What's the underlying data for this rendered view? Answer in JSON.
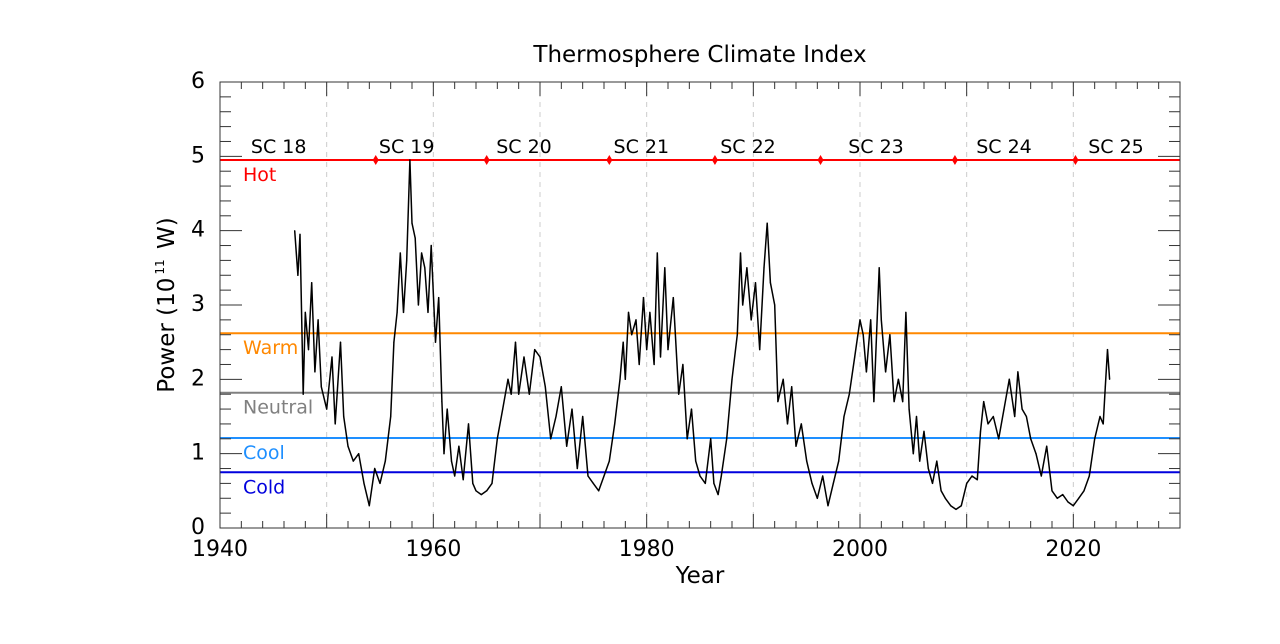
{
  "chart_data": {
    "type": "line",
    "title": "Thermosphere Climate Index",
    "xlabel": "Year",
    "ylabel_prefix": "Power (10",
    "ylabel_exp": "11",
    "ylabel_suffix": " W)",
    "xlim": [
      1940,
      2030
    ],
    "ylim": [
      0,
      6
    ],
    "x_ticks": [
      1940,
      1960,
      1980,
      2000,
      2020
    ],
    "y_ticks": [
      0,
      1,
      2,
      3,
      4,
      5,
      6
    ],
    "grid": "dashed vertical lines every 10 years",
    "levels": [
      {
        "name": "Hot",
        "value": 4.95,
        "color": "#ff0000"
      },
      {
        "name": "Warm",
        "value": 2.62,
        "color": "#ff8800"
      },
      {
        "name": "Neutral",
        "value": 1.82,
        "color": "#808080"
      },
      {
        "name": "Cool",
        "value": 1.21,
        "color": "#1e8fff"
      },
      {
        "name": "Cold",
        "value": 0.75,
        "color": "#0000dd"
      }
    ],
    "cycle_boundaries": [
      1954.6,
      1965.0,
      1976.5,
      1986.4,
      1996.3,
      2008.9,
      2020.2
    ],
    "cycles": [
      {
        "label": "SC 18",
        "x": 1945.5
      },
      {
        "label": "SC 19",
        "x": 1957.5
      },
      {
        "label": "SC 20",
        "x": 1968.5
      },
      {
        "label": "SC 21",
        "x": 1979.5
      },
      {
        "label": "SC 22",
        "x": 1989.5
      },
      {
        "label": "SC 23",
        "x": 2001.5
      },
      {
        "label": "SC 24",
        "x": 2013.5
      },
      {
        "label": "SC 25",
        "x": 2024.0
      }
    ],
    "series": [
      {
        "color": "#000000",
        "x": [
          1947.0,
          1947.3,
          1947.5,
          1947.8,
          1948.0,
          1948.3,
          1948.6,
          1948.9,
          1949.2,
          1949.5,
          1950.0,
          1950.5,
          1950.8,
          1951.3,
          1951.6,
          1952.0,
          1952.5,
          1953.0,
          1953.5,
          1954.0,
          1954.5,
          1955.0,
          1955.5,
          1956.0,
          1956.3,
          1956.6,
          1956.9,
          1957.2,
          1957.5,
          1957.8,
          1958.0,
          1958.3,
          1958.6,
          1958.9,
          1959.2,
          1959.5,
          1959.8,
          1960.2,
          1960.5,
          1960.8,
          1961.0,
          1961.3,
          1961.7,
          1962.0,
          1962.4,
          1962.8,
          1963.3,
          1963.7,
          1964.0,
          1964.5,
          1965.0,
          1965.5,
          1966.0,
          1966.5,
          1967.0,
          1967.3,
          1967.7,
          1968.0,
          1968.5,
          1969.0,
          1969.5,
          1970.0,
          1970.5,
          1971.0,
          1971.5,
          1972.0,
          1972.5,
          1973.0,
          1973.5,
          1974.0,
          1974.5,
          1975.0,
          1975.5,
          1976.0,
          1976.5,
          1977.0,
          1977.5,
          1977.8,
          1978.0,
          1978.3,
          1978.6,
          1979.0,
          1979.3,
          1979.7,
          1980.0,
          1980.3,
          1980.7,
          1981.0,
          1981.3,
          1981.7,
          1982.0,
          1982.5,
          1983.0,
          1983.4,
          1983.8,
          1984.2,
          1984.6,
          1985.0,
          1985.5,
          1986.0,
          1986.3,
          1986.7,
          1987.0,
          1987.5,
          1988.0,
          1988.5,
          1988.8,
          1989.0,
          1989.4,
          1989.8,
          1990.2,
          1990.6,
          1991.0,
          1991.3,
          1991.6,
          1992.0,
          1992.3,
          1992.8,
          1993.2,
          1993.6,
          1994.0,
          1994.5,
          1995.0,
          1995.5,
          1996.0,
          1996.5,
          1997.0,
          1997.5,
          1998.0,
          1998.5,
          1999.0,
          1999.5,
          2000.0,
          2000.3,
          2000.6,
          2001.0,
          2001.3,
          2001.8,
          2002.0,
          2002.4,
          2002.8,
          2003.2,
          2003.6,
          2004.0,
          2004.3,
          2004.6,
          2005.0,
          2005.3,
          2005.6,
          2006.0,
          2006.4,
          2006.8,
          2007.2,
          2007.6,
          2008.0,
          2008.5,
          2009.0,
          2009.5,
          2010.0,
          2010.5,
          2011.0,
          2011.3,
          2011.6,
          2012.0,
          2012.5,
          2013.0,
          2013.5,
          2014.0,
          2014.5,
          2014.8,
          2015.2,
          2015.6,
          2016.0,
          2016.5,
          2017.0,
          2017.5,
          2018.0,
          2018.5,
          2019.0,
          2019.5,
          2020.0,
          2020.5,
          2021.0,
          2021.5,
          2022.0,
          2022.5,
          2022.8,
          2023.0,
          2023.2,
          2023.4
        ],
        "y": [
          4.0,
          3.4,
          3.95,
          1.8,
          2.9,
          2.4,
          3.3,
          2.1,
          2.8,
          1.9,
          1.6,
          2.3,
          1.4,
          2.5,
          1.5,
          1.1,
          0.9,
          1.0,
          0.6,
          0.3,
          0.8,
          0.6,
          0.9,
          1.5,
          2.5,
          2.9,
          3.7,
          2.9,
          3.6,
          4.95,
          4.1,
          3.9,
          3.0,
          3.7,
          3.5,
          2.9,
          3.8,
          2.5,
          3.1,
          1.7,
          1.0,
          1.6,
          0.9,
          0.7,
          1.1,
          0.65,
          1.4,
          0.6,
          0.5,
          0.45,
          0.5,
          0.6,
          1.2,
          1.6,
          2.0,
          1.8,
          2.5,
          1.8,
          2.3,
          1.8,
          2.4,
          2.3,
          1.9,
          1.2,
          1.5,
          1.9,
          1.1,
          1.6,
          0.8,
          1.5,
          0.7,
          0.6,
          0.5,
          0.7,
          0.9,
          1.4,
          2.0,
          2.5,
          2.0,
          2.9,
          2.6,
          2.8,
          2.2,
          3.1,
          2.4,
          2.9,
          2.2,
          3.7,
          2.3,
          3.5,
          2.4,
          3.1,
          1.8,
          2.2,
          1.2,
          1.6,
          0.9,
          0.7,
          0.6,
          1.2,
          0.6,
          0.45,
          0.7,
          1.2,
          2.0,
          2.6,
          3.7,
          3.0,
          3.5,
          2.8,
          3.3,
          2.4,
          3.5,
          4.1,
          3.3,
          3.0,
          1.7,
          2.0,
          1.4,
          1.9,
          1.1,
          1.4,
          0.9,
          0.6,
          0.4,
          0.7,
          0.3,
          0.6,
          0.9,
          1.5,
          1.8,
          2.3,
          2.8,
          2.6,
          2.1,
          2.8,
          1.7,
          3.5,
          2.8,
          2.1,
          2.6,
          1.7,
          2.0,
          1.7,
          2.9,
          1.6,
          1.0,
          1.5,
          0.9,
          1.3,
          0.8,
          0.6,
          0.9,
          0.5,
          0.4,
          0.3,
          0.25,
          0.3,
          0.6,
          0.7,
          0.65,
          1.3,
          1.7,
          1.4,
          1.5,
          1.2,
          1.6,
          2.0,
          1.5,
          2.1,
          1.6,
          1.5,
          1.2,
          1.0,
          0.7,
          1.1,
          0.5,
          0.4,
          0.45,
          0.35,
          0.3,
          0.4,
          0.5,
          0.7,
          1.2,
          1.5,
          1.4,
          1.9,
          2.4,
          2.0
        ]
      }
    ]
  }
}
